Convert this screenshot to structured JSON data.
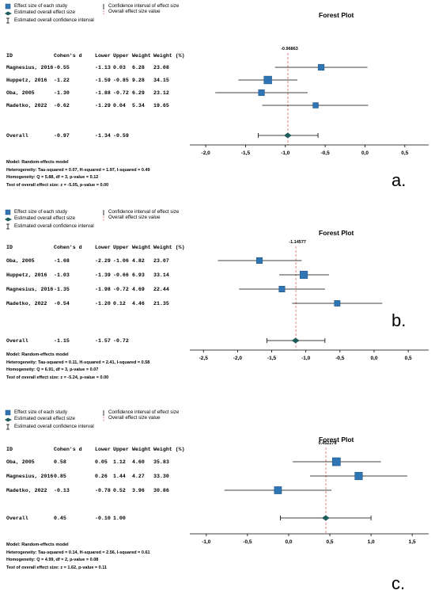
{
  "legend": {
    "effect_size": "Effect size of each study",
    "overall_effect": "Estimated overall effect size",
    "overall_ci": "Estimated overall confidence interval",
    "ci": "Confidence interval of effect size",
    "overall_value": "Overall effect size value"
  },
  "table_headers": [
    "ID",
    "Cohen's d",
    "Lower",
    "Upper",
    "Weight",
    "Weight (%)"
  ],
  "colors": {
    "marker": "#2e75b6",
    "marker_border": "#1f4e79",
    "diamond": "#1f5c5c",
    "ref_line": "#e06666"
  },
  "chart_data": [
    {
      "panel_label": "a.",
      "type": "forest",
      "title": "Forest Plot",
      "studies": [
        {
          "id": "Magnesius, 2016",
          "d": "-0.55",
          "lower": "-1.13",
          "upper": "0.03",
          "weight": "6.28",
          "weight_pct": "23.08",
          "x": -0.55,
          "lo": -1.13,
          "hi": 0.03,
          "w": 23.08
        },
        {
          "id": "Huppetz, 2016",
          "d": "-1.22",
          "lower": "-1.59",
          "upper": "-0.85",
          "weight": "9.28",
          "weight_pct": "34.15",
          "x": -1.22,
          "lo": -1.59,
          "hi": -0.85,
          "w": 34.15
        },
        {
          "id": "Oba, 2005",
          "d": "-1.30",
          "lower": "-1.88",
          "upper": "-0.72",
          "weight": "6.29",
          "weight_pct": "23.12",
          "x": -1.3,
          "lo": -1.88,
          "hi": -0.72,
          "w": 23.12
        },
        {
          "id": "Madetko, 2022",
          "d": "-0.62",
          "lower": "-1.29",
          "upper": "0.04",
          "weight": "5.34",
          "weight_pct": "19.65",
          "x": -0.62,
          "lo": -1.29,
          "hi": 0.04,
          "w": 19.65
        }
      ],
      "overall": {
        "label": "Overall",
        "d": "-0.97",
        "lower": "-1.34",
        "upper": "-0.59",
        "x": -0.97,
        "lo": -1.34,
        "hi": -0.59
      },
      "ref_label": "-0.96863",
      "ref_value": -0.96863,
      "xlim": [
        -2.2,
        0.8
      ],
      "ticks": [
        -2.0,
        -1.5,
        -1.0,
        -0.5,
        0.0,
        0.5
      ],
      "tick_labels": [
        "-2,0",
        "-1,5",
        "-1,0",
        "-0,5",
        "0,0",
        "0,5"
      ],
      "footer": [
        "Model: Random-effects model",
        "Heterogeneity: Tau-squared = 0.07, H-squared = 1.97, I-squared = 0.49",
        "Homogeneity: Q = 5.88, df = 3, p-value = 0.12",
        "Test of overall effect size: z = -5.05, p-value = 0.00"
      ]
    },
    {
      "panel_label": "b.",
      "type": "forest",
      "title": "Forest Plot",
      "studies": [
        {
          "id": "Oba, 2005",
          "d": "-1.68",
          "lower": "-2.29",
          "upper": "-1.06",
          "weight": "4.82",
          "weight_pct": "23.07",
          "x": -1.68,
          "lo": -2.29,
          "hi": -1.06,
          "w": 23.07
        },
        {
          "id": "Huppetz, 2016",
          "d": "-1.03",
          "lower": "-1.39",
          "upper": "-0.66",
          "weight": "6.93",
          "weight_pct": "33.14",
          "x": -1.03,
          "lo": -1.39,
          "hi": -0.66,
          "w": 33.14
        },
        {
          "id": "Magnesius, 2016",
          "d": "-1.35",
          "lower": "-1.98",
          "upper": "-0.72",
          "weight": "4.69",
          "weight_pct": "22.44",
          "x": -1.35,
          "lo": -1.98,
          "hi": -0.72,
          "w": 22.44
        },
        {
          "id": "Madetko, 2022",
          "d": "-0.54",
          "lower": "-1.20",
          "upper": "0.12",
          "weight": "4.46",
          "weight_pct": "21.35",
          "x": -0.54,
          "lo": -1.2,
          "hi": 0.12,
          "w": 21.35
        }
      ],
      "overall": {
        "label": "Overall",
        "d": "-1.15",
        "lower": "-1.57",
        "upper": "-0.72",
        "x": -1.15,
        "lo": -1.57,
        "hi": -0.72
      },
      "ref_label": "-1.14577",
      "ref_value": -1.14577,
      "xlim": [
        -2.7,
        0.8
      ],
      "ticks": [
        -2.5,
        -2.0,
        -1.5,
        -1.0,
        -0.5,
        0.0,
        0.5
      ],
      "tick_labels": [
        "-2,5",
        "-2,0",
        "-1,5",
        "-1,0",
        "-0,5",
        "0,0",
        "0,5"
      ],
      "footer": [
        "Model: Random-effects model",
        "Heterogeneity: Tau-squared = 0.11, H-squared = 2.41, I-squared = 0.58",
        "Homogeneity: Q = 6.91, df = 3, p-value = 0.07",
        "Test of overall effect size: z = -5.24, p-value = 0.00"
      ]
    },
    {
      "panel_label": "c.",
      "type": "forest",
      "title": "Forest Plot",
      "studies": [
        {
          "id": "Oba, 2005",
          "d": "0.58",
          "lower": "0.05",
          "upper": "1.12",
          "weight": "4.60",
          "weight_pct": "35.83",
          "x": 0.58,
          "lo": 0.05,
          "hi": 1.12,
          "w": 35.83
        },
        {
          "id": "Magnesius, 2016",
          "d": "0.85",
          "lower": "0.26",
          "upper": "1.44",
          "weight": "4.27",
          "weight_pct": "33.30",
          "x": 0.85,
          "lo": 0.26,
          "hi": 1.44,
          "w": 33.3
        },
        {
          "id": "Madetko, 2022",
          "d": "-0.13",
          "lower": "-0.78",
          "upper": "0.52",
          "weight": "3.96",
          "weight_pct": "30.86",
          "x": -0.13,
          "lo": -0.78,
          "hi": 0.52,
          "w": 30.86
        }
      ],
      "overall": {
        "label": "Overall",
        "d": "0.45",
        "lower": "-0.10",
        "upper": "1.00",
        "x": 0.45,
        "lo": -0.1,
        "hi": 1.0
      },
      "ref_label": "0.452278",
      "ref_value": 0.452278,
      "xlim": [
        -1.2,
        1.7
      ],
      "ticks": [
        -1.0,
        -0.5,
        0.0,
        0.5,
        1.0,
        1.5
      ],
      "tick_labels": [
        "-1,0",
        "-0,5",
        "0,0",
        "0,5",
        "1,0",
        "1,5"
      ],
      "footer": [
        "Model: Random-effects model",
        "Heterogeneity: Tau-squared = 0.14, H-squared = 2.56, I-squared = 0.61",
        "Homogeneity: Q = 4.99, df = 2, p-value = 0.08",
        "Test of overall effect size: z = 1.62, p-value = 0.11"
      ]
    }
  ]
}
